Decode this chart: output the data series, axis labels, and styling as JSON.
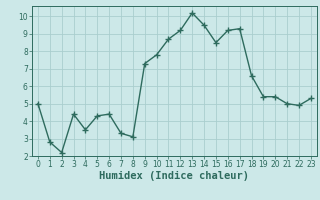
{
  "x": [
    0,
    1,
    2,
    3,
    4,
    5,
    6,
    7,
    8,
    9,
    10,
    11,
    12,
    13,
    14,
    15,
    16,
    17,
    18,
    19,
    20,
    21,
    22,
    23
  ],
  "y": [
    5.0,
    2.8,
    2.2,
    4.4,
    3.5,
    4.3,
    4.4,
    3.3,
    3.1,
    7.3,
    7.8,
    8.7,
    9.2,
    10.2,
    9.5,
    8.5,
    9.2,
    9.3,
    6.6,
    5.4,
    5.4,
    5.0,
    4.9,
    5.3
  ],
  "line_color": "#2e6b5e",
  "marker": "+",
  "bg_color": "#cce8e8",
  "grid_color": "#aacece",
  "xlabel": "Humidex (Indice chaleur)",
  "xlim": [
    -0.5,
    23.5
  ],
  "ylim": [
    2.0,
    10.6
  ],
  "yticks": [
    2,
    3,
    4,
    5,
    6,
    7,
    8,
    9,
    10
  ],
  "xticks": [
    0,
    1,
    2,
    3,
    4,
    5,
    6,
    7,
    8,
    9,
    10,
    11,
    12,
    13,
    14,
    15,
    16,
    17,
    18,
    19,
    20,
    21,
    22,
    23
  ],
  "tick_labelsize": 5.5,
  "xlabel_fontsize": 7.5,
  "line_width": 1.0,
  "marker_size": 4.5,
  "marker_ew": 1.0
}
